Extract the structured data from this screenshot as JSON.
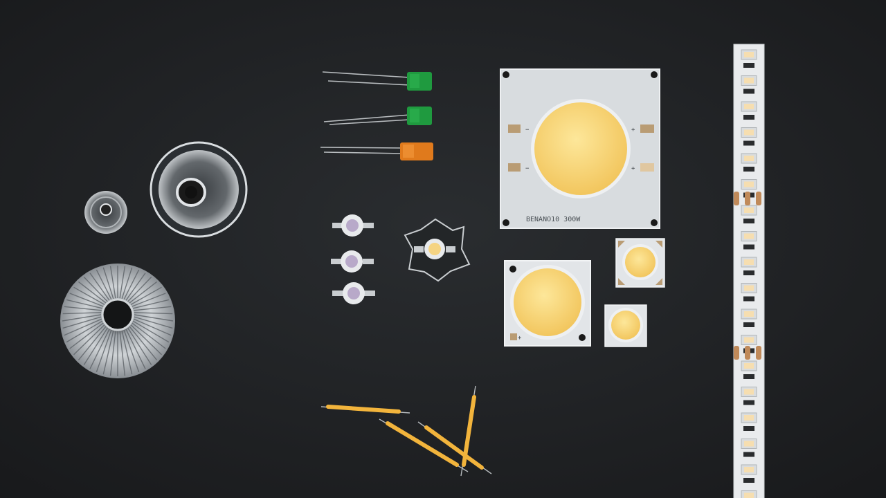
{
  "scene": {
    "background": "#1e2123",
    "cob_large_label": "BENANO10 300W",
    "polarity_minus": "−",
    "polarity_plus": "+",
    "led_colors": {
      "green": "#1f9a3f",
      "orange": "#e07a1c",
      "cob_phosphor": "#f8d77a",
      "filament": "#f2b43c"
    }
  }
}
